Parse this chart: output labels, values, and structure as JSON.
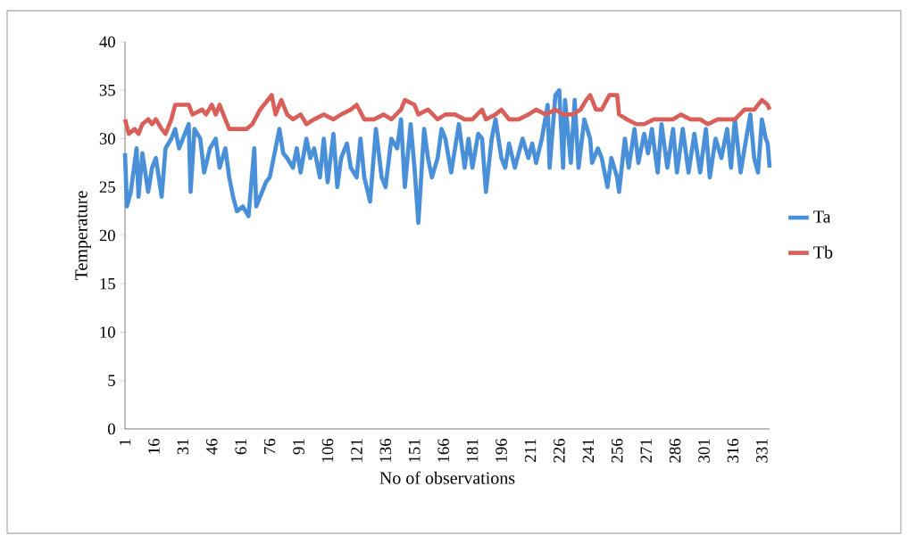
{
  "chart_data": {
    "type": "line",
    "xlabel": "No of observations",
    "ylabel": "Temperature",
    "xlim": [
      1,
      335
    ],
    "ylim": [
      0,
      40
    ],
    "xticks": [
      1,
      16,
      31,
      46,
      61,
      76,
      91,
      106,
      121,
      136,
      151,
      166,
      181,
      196,
      211,
      226,
      241,
      256,
      271,
      286,
      301,
      316,
      331
    ],
    "yticks": [
      0,
      5,
      10,
      15,
      20,
      25,
      30,
      35,
      40
    ],
    "legend": "right",
    "grid": false,
    "marker": "none",
    "line_style": "solid",
    "series": [
      {
        "name": "Ta",
        "color": "#4a90d9",
        "x": [
          1,
          2,
          4,
          7,
          8,
          10,
          13,
          15,
          17,
          20,
          22,
          25,
          27,
          29,
          31,
          34,
          35,
          37,
          40,
          42,
          45,
          48,
          50,
          53,
          55,
          57,
          59,
          62,
          65,
          68,
          69,
          71,
          74,
          76,
          81,
          83,
          85,
          88,
          90,
          92,
          95,
          97,
          99,
          102,
          104,
          106,
          109,
          111,
          113,
          116,
          118,
          121,
          123,
          125,
          128,
          131,
          134,
          136,
          139,
          142,
          144,
          146,
          149,
          151,
          153,
          156,
          158,
          160,
          163,
          165,
          167,
          170,
          172,
          174,
          177,
          179,
          181,
          184,
          186,
          188,
          191,
          193,
          196,
          198,
          200,
          203,
          205,
          207,
          210,
          212,
          214,
          217,
          220,
          221,
          224,
          226,
          228,
          229,
          232,
          234,
          236,
          239,
          242,
          243,
          246,
          248,
          251,
          253,
          256,
          257,
          260,
          262,
          265,
          267,
          270,
          272,
          274,
          277,
          279,
          282,
          285,
          287,
          290,
          293,
          296,
          299,
          302,
          304,
          307,
          310,
          313,
          315,
          317,
          320,
          322,
          325,
          327,
          329,
          331,
          333,
          334,
          335
        ],
        "values": [
          28.5,
          23,
          24.5,
          29,
          24,
          28.5,
          24.5,
          27,
          28,
          24,
          29,
          30,
          31,
          29,
          30,
          31.5,
          24.5,
          31,
          30,
          26.5,
          29,
          30,
          27,
          29,
          26,
          24,
          22.5,
          23,
          22,
          29,
          23,
          24,
          25.5,
          26,
          31,
          28.5,
          28,
          27,
          29,
          26.5,
          30,
          28,
          29,
          26,
          30,
          25.5,
          30.5,
          25,
          28,
          29.5,
          27,
          26,
          30,
          26,
          23.5,
          31,
          26,
          25,
          30,
          29,
          32,
          25,
          31.5,
          27,
          21.3,
          31,
          28,
          26,
          28,
          31,
          30,
          26.5,
          29,
          31.5,
          27,
          30,
          27,
          30.5,
          30,
          24.5,
          30,
          32,
          28,
          27,
          29.5,
          27,
          28.5,
          30,
          28,
          29.5,
          27.5,
          30,
          33.5,
          27,
          34.5,
          35,
          27,
          34,
          27.5,
          34,
          27,
          32,
          30,
          27.5,
          29,
          28,
          25,
          28,
          26,
          24.5,
          30,
          27,
          31,
          27.5,
          30.5,
          28.5,
          31,
          26.5,
          31.5,
          27,
          31,
          26.5,
          31,
          26.5,
          30.5,
          26.5,
          31,
          26,
          30,
          28,
          31,
          27,
          32,
          26.5,
          29,
          32.5,
          28,
          26.5,
          32,
          30,
          29.5,
          27
        ]
      },
      {
        "name": "Tb",
        "color": "#d9605a",
        "x": [
          1,
          3,
          6,
          8,
          10,
          13,
          15,
          17,
          20,
          22,
          25,
          27,
          31,
          34,
          36,
          41,
          43,
          46,
          48,
          50,
          53,
          55,
          60,
          64,
          67,
          71,
          77,
          79,
          82,
          85,
          88,
          92,
          95,
          99,
          104,
          109,
          113,
          118,
          121,
          125,
          130,
          135,
          139,
          144,
          146,
          151,
          153,
          158,
          163,
          167,
          172,
          177,
          181,
          186,
          188,
          193,
          196,
          200,
          205,
          210,
          214,
          219,
          224,
          228,
          233,
          237,
          240,
          242,
          245,
          248,
          252,
          256,
          257,
          261,
          266,
          270,
          275,
          280,
          285,
          289,
          294,
          299,
          303,
          308,
          313,
          317,
          322,
          327,
          331,
          334,
          335
        ],
        "values": [
          32,
          30.5,
          31,
          30.5,
          31.5,
          32,
          31.5,
          32,
          31,
          30.5,
          32,
          33.5,
          33.5,
          33.5,
          32.5,
          33,
          32.5,
          33.5,
          32.5,
          33.5,
          32,
          31,
          31,
          31,
          31.5,
          33,
          34.5,
          32.5,
          34,
          32.5,
          32,
          32.5,
          31.5,
          32,
          32.5,
          32,
          32.5,
          33,
          33.5,
          32,
          32,
          32.5,
          32,
          33,
          34,
          33.5,
          32.5,
          33,
          32,
          32.5,
          32.5,
          32,
          32,
          33,
          32,
          32.5,
          33,
          32,
          32,
          32.5,
          33,
          32.5,
          33,
          32.5,
          32.5,
          33,
          34,
          34.5,
          33,
          33,
          34.5,
          34.5,
          32.5,
          32,
          31.5,
          31.5,
          32,
          32,
          32,
          32.5,
          32,
          32,
          31.5,
          32,
          32,
          32,
          33,
          33,
          34,
          33.5,
          33
        ]
      }
    ]
  }
}
